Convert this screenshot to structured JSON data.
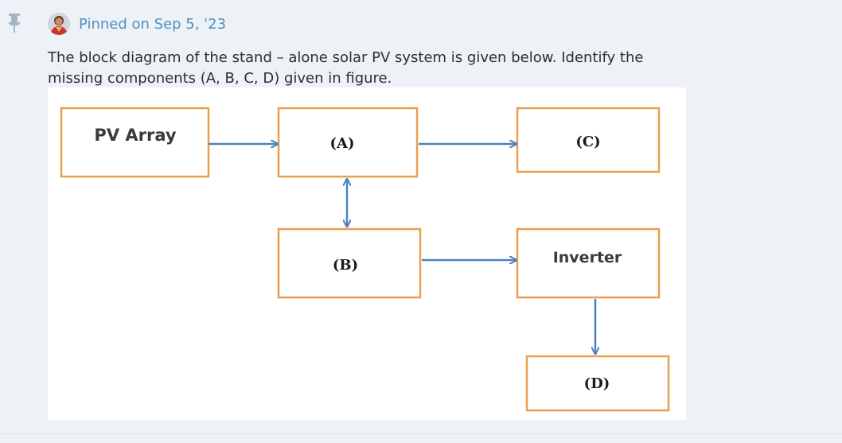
{
  "post": {
    "pinned_label": "Pinned on Sep 5, '23",
    "question": "The block diagram of the stand – alone solar PV system is given below. Identify the missing components (A, B, C, D) given in figure."
  },
  "diagram": {
    "boxes": {
      "pv_array": "PV Array",
      "a": "(A)",
      "c": "(C)",
      "b": "(B)",
      "inverter": "Inverter",
      "d": "(D)"
    },
    "colors": {
      "box_border": "#e8a050",
      "arrow": "#4f81bd"
    }
  },
  "icons": {
    "pin": "pin-icon",
    "avatar": "avatar"
  }
}
